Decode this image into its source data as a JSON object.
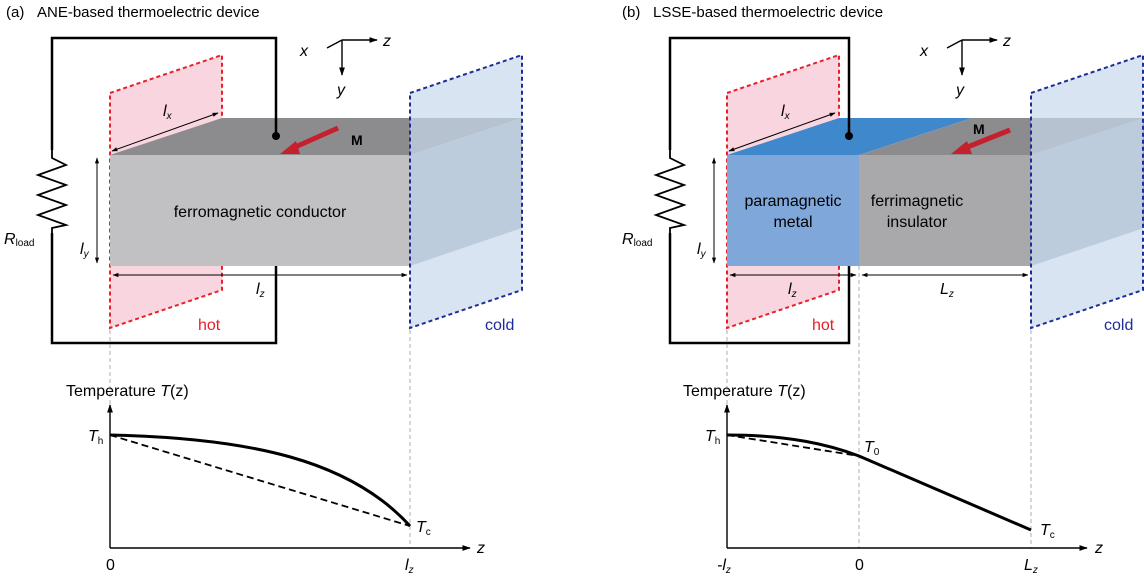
{
  "panel_a": {
    "tag": "(a)",
    "title": "ANE-based thermoelectric device",
    "axis_x": "x",
    "axis_y": "y",
    "axis_z": "z",
    "lx": "l",
    "lx_sub": "x",
    "ly": "l",
    "ly_sub": "y",
    "lz": "l",
    "lz_sub": "z",
    "magnetization": "M",
    "block_label": "ferromagnetic conductor",
    "hot": "hot",
    "cold": "cold",
    "rload": "R",
    "rload_sub": "load",
    "plot_ylabel": "Temperature ",
    "plot_ylabel_T": "T",
    "plot_ylabel_arg": "(z)",
    "th": "T",
    "th_sub": "h",
    "tc": "T",
    "tc_sub": "c",
    "plot_zlabel": "z",
    "tick0": "0",
    "tick_lz": "l",
    "tick_lz_sub": "z"
  },
  "panel_b": {
    "tag": "(b)",
    "title": "LSSE-based thermoelectric device",
    "axis_x": "x",
    "axis_y": "y",
    "axis_z": "z",
    "lx": "l",
    "lx_sub": "x",
    "ly": "l",
    "ly_sub": "y",
    "lz": "l",
    "lz_sub": "z",
    "Lz": "L",
    "Lz_sub": "z",
    "magnetization": "M",
    "metal_label_1": "paramagnetic",
    "metal_label_2": "metal",
    "insulator_label_1": "ferrimagnetic",
    "insulator_label_2": "insulator",
    "hot": "hot",
    "cold": "cold",
    "rload": "R",
    "rload_sub": "load",
    "plot_ylabel": "Temperature ",
    "plot_ylabel_T": "T",
    "plot_ylabel_arg": "(z)",
    "th": "T",
    "th_sub": "h",
    "t0": "T",
    "t0_sub": "0",
    "tc": "T",
    "tc_sub": "c",
    "plot_zlabel": "z",
    "tick_neg_lz": "-l",
    "tick_neg_lz_sub": "z",
    "tick0": "0",
    "tick_Lz": "L",
    "tick_Lz_sub": "z"
  },
  "colors": {
    "hot_fill": "#f9d5e0",
    "hot_edge": "#e8202a",
    "cold_fill": "#c8d8ec",
    "cold_edge": "#1e2c98",
    "block_front": "#c1c1c3",
    "block_top": "#8c8c8e",
    "block_side": "#a6aeb8",
    "metal_front": "#7fa7d9",
    "metal_top": "#3f88cc",
    "arrow": "#c4202e"
  }
}
